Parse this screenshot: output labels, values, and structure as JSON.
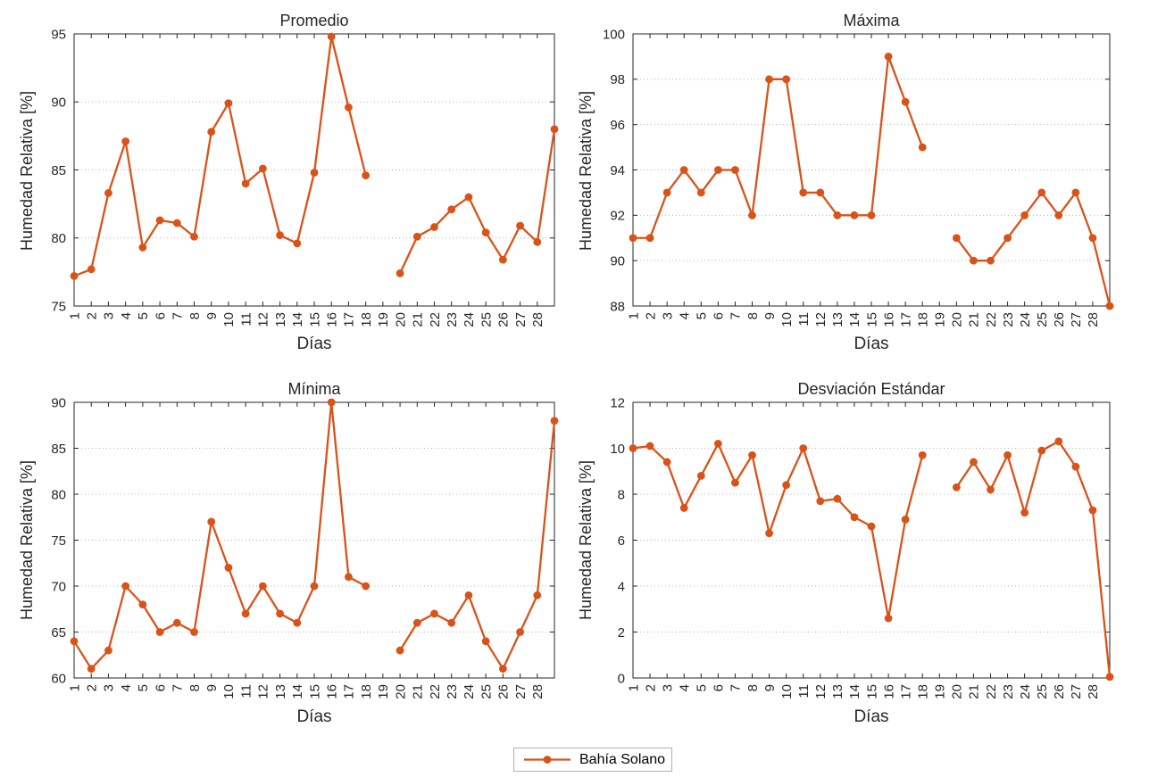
{
  "figure": {
    "legend": {
      "label": "Bahía Solano",
      "position": "below-figure"
    },
    "series_color": "#D95319",
    "axis_color": "#262626",
    "grid_color": "#b4b4b4",
    "xtick_labels": [
      1,
      2,
      3,
      4,
      5,
      6,
      7,
      8,
      9,
      10,
      11,
      12,
      13,
      14,
      15,
      16,
      17,
      18,
      19,
      20,
      21,
      22,
      23,
      24,
      25,
      26,
      27,
      28
    ]
  },
  "chart_data": [
    {
      "type": "line",
      "title": "Promedio",
      "xlabel": "Días",
      "ylabel": "Humedad Relativa [%]",
      "series_name": "Bahía Solano",
      "x": [
        1,
        2,
        3,
        4,
        5,
        6,
        7,
        8,
        9,
        10,
        11,
        12,
        13,
        14,
        15,
        16,
        17,
        18,
        19,
        20,
        21,
        22,
        23,
        24,
        25,
        26,
        27,
        28,
        29
      ],
      "values": [
        77.2,
        77.7,
        83.3,
        87.1,
        79.3,
        81.3,
        81.1,
        80.1,
        87.8,
        89.9,
        84.0,
        85.1,
        80.2,
        79.6,
        84.8,
        94.8,
        89.6,
        84.6,
        null,
        77.4,
        80.1,
        80.8,
        82.1,
        83.0,
        80.4,
        78.4,
        80.9,
        79.7,
        88.0
      ],
      "xlim": [
        1,
        29
      ],
      "ylim": [
        75,
        95
      ],
      "yticks": [
        75,
        80,
        85,
        90,
        95
      ],
      "grid": "horizontal-dotted"
    },
    {
      "type": "line",
      "title": "Máxima",
      "xlabel": "Días",
      "ylabel": "Humedad Relativa [%]",
      "series_name": "Bahía Solano",
      "x": [
        1,
        2,
        3,
        4,
        5,
        6,
        7,
        8,
        9,
        10,
        11,
        12,
        13,
        14,
        15,
        16,
        17,
        18,
        19,
        20,
        21,
        22,
        23,
        24,
        25,
        26,
        27,
        28,
        29
      ],
      "values": [
        91,
        91,
        93,
        94,
        93,
        94,
        94,
        92,
        98,
        98,
        93,
        93,
        92,
        92,
        92,
        99,
        97,
        95,
        null,
        91,
        90,
        90,
        91,
        92,
        93,
        92,
        93,
        91,
        88
      ],
      "xlim": [
        1,
        29
      ],
      "ylim": [
        88,
        100
      ],
      "yticks": [
        88,
        90,
        92,
        94,
        96,
        98,
        100
      ],
      "grid": "horizontal-dotted"
    },
    {
      "type": "line",
      "title": "Mínima",
      "xlabel": "Días",
      "ylabel": "Humedad Relativa [%]",
      "series_name": "Bahía Solano",
      "x": [
        1,
        2,
        3,
        4,
        5,
        6,
        7,
        8,
        9,
        10,
        11,
        12,
        13,
        14,
        15,
        16,
        17,
        18,
        19,
        20,
        21,
        22,
        23,
        24,
        25,
        26,
        27,
        28,
        29
      ],
      "values": [
        64,
        61,
        63,
        70,
        68,
        65,
        66,
        65,
        77,
        72,
        67,
        70,
        67,
        66,
        70,
        90,
        71,
        70,
        null,
        63,
        66,
        67,
        66,
        69,
        64,
        61,
        65,
        69,
        88
      ],
      "xlim": [
        1,
        29
      ],
      "ylim": [
        60,
        90
      ],
      "yticks": [
        60,
        65,
        70,
        75,
        80,
        85,
        90
      ],
      "grid": "horizontal-dotted"
    },
    {
      "type": "line",
      "title": "Desviación Estándar",
      "xlabel": "Días",
      "ylabel": "Humedad Relativa [%]",
      "series_name": "Bahía Solano",
      "x": [
        1,
        2,
        3,
        4,
        5,
        6,
        7,
        8,
        9,
        10,
        11,
        12,
        13,
        14,
        15,
        16,
        17,
        18,
        19,
        20,
        21,
        22,
        23,
        24,
        25,
        26,
        27,
        28,
        29
      ],
      "values": [
        10.0,
        10.1,
        9.4,
        7.4,
        8.8,
        10.2,
        8.5,
        9.7,
        6.3,
        8.4,
        10.0,
        7.7,
        7.8,
        7.0,
        6.6,
        2.6,
        6.9,
        9.7,
        null,
        8.3,
        9.4,
        8.2,
        9.7,
        7.2,
        9.9,
        10.3,
        9.2,
        7.3,
        0.05
      ],
      "xlim": [
        1,
        29
      ],
      "ylim": [
        0,
        12
      ],
      "yticks": [
        0,
        2,
        4,
        6,
        8,
        10,
        12
      ],
      "grid": "horizontal-dotted"
    }
  ]
}
